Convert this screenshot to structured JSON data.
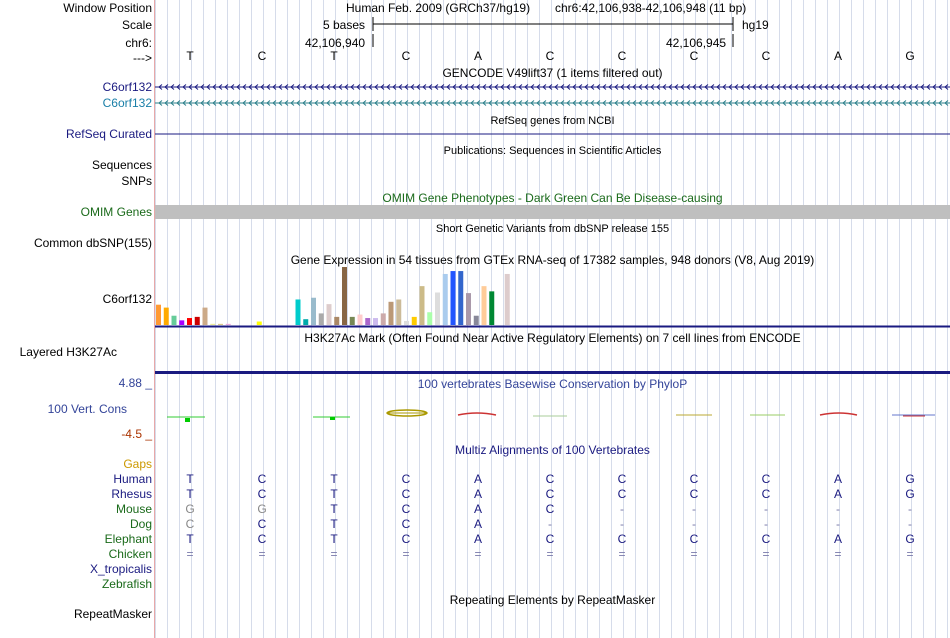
{
  "window_title": "Human Feb. 2009 (GRCh37/hg19)",
  "position": "chr6:42,106,938-42,106,948 (11 bp)",
  "scale": {
    "label": "5 bases",
    "assembly": "hg19",
    "tick_left": "42,106,940",
    "tick_right": "42,106,945"
  },
  "labels": {
    "window_position": "Window Position",
    "scale": "Scale",
    "chrom": "chr6:",
    "strand": "--->",
    "gene1": "C6orf132",
    "gene2": "C6orf132",
    "refseq": "RefSeq Curated",
    "sequences": "Sequences",
    "snps": "SNPs",
    "omim": "OMIM Genes",
    "dbsnp": "Common dbSNP(155)",
    "gtex": "C6orf132",
    "h3k27ac": "Layered H3K27Ac",
    "cons_max": "4.88 _",
    "cons": "100 Vert. Cons",
    "cons_min": "-4.5 _",
    "gaps": "Gaps",
    "repeatmasker": "RepeatMasker"
  },
  "bases": [
    "T",
    "C",
    "T",
    "C",
    "A",
    "C",
    "C",
    "C",
    "C",
    "A",
    "G"
  ],
  "tracks": {
    "gencode": "GENCODE V49lift37 (1 items filtered out)",
    "refseq": "RefSeq genes from NCBI",
    "publications": "Publications: Sequences in Scientific Articles",
    "omim": "OMIM Gene Phenotypes - Dark Green Can Be Disease-causing",
    "dbsnp": "Short Genetic Variants from dbSNP release 155",
    "gtex": "Gene Expression in 54 tissues from GTEx RNA-seq of 17382 samples, 948 donors (V8, Aug 2019)",
    "h3k27ac": "H3K27Ac Mark (Often Found Near Active Regulatory Elements) on 7 cell lines from ENCODE",
    "phylop": "100 vertebrates Basewise Conservation by PhyloP",
    "multiz": "Multiz Alignments of 100 Vertebrates",
    "repeatmasker": "Repeating Elements by RepeatMasker"
  },
  "species": [
    {
      "name": "Human",
      "seq": [
        "T",
        "C",
        "T",
        "C",
        "A",
        "C",
        "C",
        "C",
        "C",
        "A",
        "G"
      ]
    },
    {
      "name": "Rhesus",
      "seq": [
        "T",
        "C",
        "T",
        "C",
        "A",
        "C",
        "C",
        "C",
        "C",
        "A",
        "G"
      ]
    },
    {
      "name": "Mouse",
      "seq": [
        "G",
        "G",
        "T",
        "C",
        "A",
        "C",
        "-",
        "-",
        "-",
        "-",
        "-"
      ]
    },
    {
      "name": "Dog",
      "seq": [
        "C",
        "C",
        "T",
        "C",
        "A",
        "-",
        "-",
        "-",
        "-",
        "-",
        "-"
      ]
    },
    {
      "name": "Elephant",
      "seq": [
        "T",
        "C",
        "T",
        "C",
        "A",
        "C",
        "C",
        "C",
        "C",
        "A",
        "G"
      ]
    },
    {
      "name": "Chicken",
      "seq": [
        "=",
        "=",
        "=",
        "=",
        "=",
        "=",
        "=",
        "=",
        "=",
        "=",
        "="
      ]
    },
    {
      "name": "X_tropicalis",
      "seq": []
    },
    {
      "name": "Zebrafish",
      "seq": []
    }
  ],
  "gtex_bars": [
    {
      "v": 0.35,
      "c": "#ff9933"
    },
    {
      "v": 0.3,
      "c": "#ffaa00"
    },
    {
      "v": 0.16,
      "c": "#66cc99"
    },
    {
      "v": 0.08,
      "c": "#aa00ff"
    },
    {
      "v": 0.12,
      "c": "#ff0000"
    },
    {
      "v": 0.14,
      "c": "#cc0000"
    },
    {
      "v": 0.3,
      "c": "#ccaa88"
    },
    {
      "v": 0.02,
      "c": "#eeee99"
    },
    {
      "v": 0.02,
      "c": "#ddcc88"
    },
    {
      "v": 0.02,
      "c": "#eeaadd"
    },
    {
      "v": 0.0,
      "c": "#ffffff"
    },
    {
      "v": 0.0,
      "c": "#ffffff"
    },
    {
      "v": 0.0,
      "c": "#ffffff"
    },
    {
      "v": 0.06,
      "c": "#ffff00"
    },
    {
      "v": 0.0,
      "c": "#ffffff"
    },
    {
      "v": 0.0,
      "c": "#ffffff"
    },
    {
      "v": 0.0,
      "c": "#ffffff"
    },
    {
      "v": 0.0,
      "c": "#ffffff"
    },
    {
      "v": 0.44,
      "c": "#00cccc"
    },
    {
      "v": 0.1,
      "c": "#00aaaa"
    },
    {
      "v": 0.47,
      "c": "#99bbcc"
    },
    {
      "v": 0.2,
      "c": "#aaaaaa"
    },
    {
      "v": 0.36,
      "c": "#ddcccc"
    },
    {
      "v": 0.14,
      "c": "#aa8866"
    },
    {
      "v": 1.0,
      "c": "#886644"
    },
    {
      "v": 0.14,
      "c": "#778855"
    },
    {
      "v": 0.18,
      "c": "#ffcccc"
    },
    {
      "v": 0.12,
      "c": "#aa66cc"
    },
    {
      "v": 0.12,
      "c": "#ccbbee"
    },
    {
      "v": 0.2,
      "c": "#ccaaaa"
    },
    {
      "v": 0.4,
      "c": "#bb9977"
    },
    {
      "v": 0.44,
      "c": "#ccbb99"
    },
    {
      "v": 0.07,
      "c": "#dddddd"
    },
    {
      "v": 0.14,
      "c": "#ffcc00"
    },
    {
      "v": 0.67,
      "c": "#ccbb88"
    },
    {
      "v": 0.22,
      "c": "#aaffaa"
    },
    {
      "v": 0.56,
      "c": "#dddddd"
    },
    {
      "v": 0.88,
      "c": "#aaccee"
    },
    {
      "v": 0.93,
      "c": "#2255ff"
    },
    {
      "v": 0.93,
      "c": "#3366cc"
    },
    {
      "v": 0.55,
      "c": "#aa99aa"
    },
    {
      "v": 0.16,
      "c": "#888899"
    },
    {
      "v": 0.67,
      "c": "#ffcc99"
    },
    {
      "v": 0.58,
      "c": "#008833"
    },
    {
      "v": 0.0,
      "c": "#ffffff"
    },
    {
      "v": 0.88,
      "c": "#ddcccc"
    }
  ],
  "colors": {
    "navy": "#1a1a80",
    "teal": "#2a7f8a",
    "gene2_label": "#1a7fa8",
    "omim": "#1a6a1a",
    "gaps": "#cc9900",
    "species": "#1a6a1a",
    "cons_axis": "#334499",
    "cons_min": "#aa3300",
    "tick_red": "#e8a8a8",
    "phylop_title": "#334499",
    "multiz_title": "#1a1a80"
  }
}
